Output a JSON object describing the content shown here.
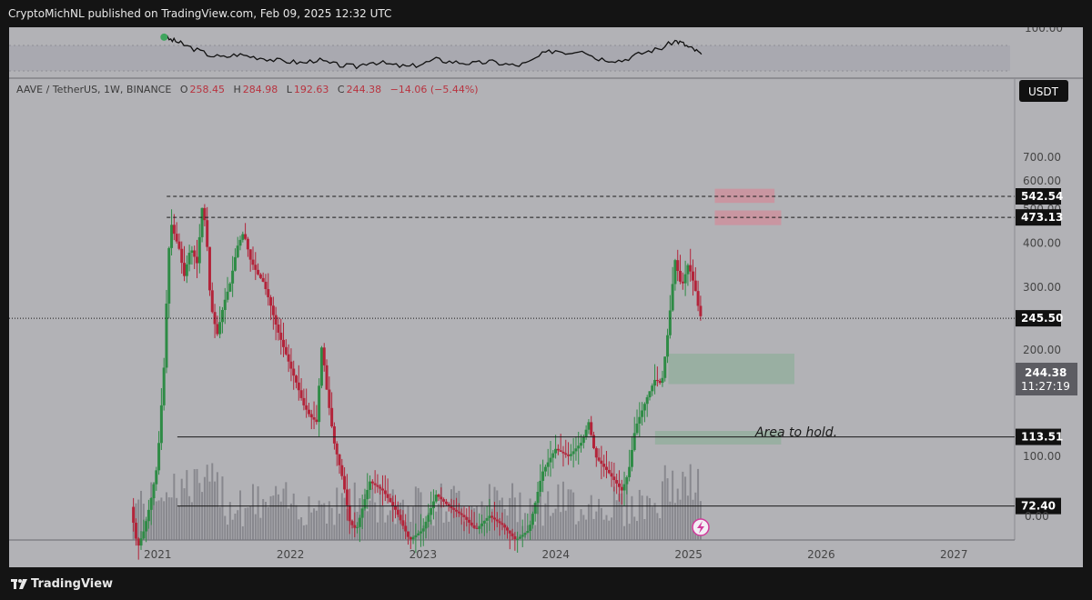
{
  "header": {
    "publish_text": "CryptoMichNL published on TradingView.com, Feb 09, 2025 12:32 UTC"
  },
  "legend": {
    "symbol": "AAVE / TetherUS, 1W, BINANCE",
    "open_label": "O",
    "open": "258.45",
    "high_label": "H",
    "high": "284.98",
    "low_label": "L",
    "low": "192.63",
    "close_label": "C",
    "close": "244.38",
    "change": "−14.06 (−5.44%)"
  },
  "currency_badge": "USDT",
  "rsi_panel": {
    "top_label": "100.00"
  },
  "footer": {
    "brand": "TradingView"
  },
  "colors": {
    "up": "#2e8b45",
    "down": "#b3243a",
    "background": "#b2b2b6",
    "resistance_zone": "#d08c9a",
    "support_zone": "#8fae9a",
    "badge": "#111111"
  },
  "chart_data": {
    "type": "candlestick",
    "scale": "log",
    "price_axis_labels": [
      "700.00",
      "600.00",
      "500.00",
      "400.00",
      "300.00",
      "200.00",
      "100.00"
    ],
    "volume_axis_label": "0.00",
    "x_tick_labels": [
      "2021",
      "2022",
      "2023",
      "2024",
      "2025",
      "2026",
      "2027"
    ],
    "levels": [
      {
        "label": "542.54",
        "value": 542.54,
        "style": "dashed"
      },
      {
        "label": "473.13",
        "value": 473.13,
        "style": "dashed"
      },
      {
        "label": "245.50",
        "value": 245.5,
        "style": "dotted"
      },
      {
        "label": "113.51",
        "value": 113.51,
        "style": "solid"
      },
      {
        "label": "72.40",
        "value": 72.4,
        "style": "solid"
      }
    ],
    "current_price": {
      "label": "244.38",
      "countdown": "11:27:19"
    },
    "zones": [
      {
        "kind": "resistance",
        "from": 2025.2,
        "to": 2025.65,
        "low": 520,
        "high": 570
      },
      {
        "kind": "resistance",
        "from": 2025.2,
        "to": 2025.7,
        "low": 450,
        "high": 495
      },
      {
        "kind": "support",
        "from": 2024.85,
        "to": 2025.8,
        "low": 160,
        "high": 195
      },
      {
        "kind": "support",
        "from": 2024.75,
        "to": 2025.7,
        "low": 108,
        "high": 118
      }
    ],
    "annotation": "Area to hold.",
    "price_path": [
      [
        2020.8,
        72
      ],
      [
        2020.85,
        55
      ],
      [
        2020.9,
        62
      ],
      [
        2020.95,
        75
      ],
      [
        2021.0,
        95
      ],
      [
        2021.05,
        180
      ],
      [
        2021.08,
        350
      ],
      [
        2021.1,
        460
      ],
      [
        2021.13,
        420
      ],
      [
        2021.17,
        380
      ],
      [
        2021.2,
        320
      ],
      [
        2021.25,
        390
      ],
      [
        2021.3,
        350
      ],
      [
        2021.34,
        520
      ],
      [
        2021.37,
        420
      ],
      [
        2021.4,
        270
      ],
      [
        2021.45,
        220
      ],
      [
        2021.5,
        270
      ],
      [
        2021.55,
        310
      ],
      [
        2021.6,
        390
      ],
      [
        2021.65,
        430
      ],
      [
        2021.7,
        360
      ],
      [
        2021.75,
        330
      ],
      [
        2021.8,
        310
      ],
      [
        2021.85,
        270
      ],
      [
        2021.9,
        230
      ],
      [
        2022.0,
        180
      ],
      [
        2022.05,
        160
      ],
      [
        2022.1,
        140
      ],
      [
        2022.15,
        130
      ],
      [
        2022.2,
        125
      ],
      [
        2022.24,
        210
      ],
      [
        2022.27,
        160
      ],
      [
        2022.33,
        110
      ],
      [
        2022.4,
        85
      ],
      [
        2022.45,
        65
      ],
      [
        2022.5,
        62
      ],
      [
        2022.6,
        85
      ],
      [
        2022.7,
        80
      ],
      [
        2022.8,
        70
      ],
      [
        2022.9,
        58
      ],
      [
        2023.0,
        62
      ],
      [
        2023.1,
        78
      ],
      [
        2023.2,
        72
      ],
      [
        2023.3,
        68
      ],
      [
        2023.4,
        62
      ],
      [
        2023.5,
        68
      ],
      [
        2023.6,
        64
      ],
      [
        2023.7,
        58
      ],
      [
        2023.8,
        62
      ],
      [
        2023.9,
        90
      ],
      [
        2024.0,
        105
      ],
      [
        2024.1,
        100
      ],
      [
        2024.2,
        110
      ],
      [
        2024.25,
        125
      ],
      [
        2024.3,
        100
      ],
      [
        2024.4,
        90
      ],
      [
        2024.5,
        80
      ],
      [
        2024.55,
        90
      ],
      [
        2024.6,
        120
      ],
      [
        2024.7,
        150
      ],
      [
        2024.75,
        165
      ],
      [
        2024.8,
        160
      ],
      [
        2024.85,
        230
      ],
      [
        2024.9,
        360
      ],
      [
        2024.95,
        300
      ],
      [
        2025.0,
        350
      ],
      [
        2025.05,
        300
      ],
      [
        2025.08,
        258
      ],
      [
        2025.1,
        244
      ]
    ],
    "rsi_path": [
      [
        2021.05,
        95
      ],
      [
        2021.1,
        90
      ],
      [
        2021.15,
        86
      ],
      [
        2021.2,
        80
      ],
      [
        2021.3,
        70
      ],
      [
        2021.4,
        60
      ],
      [
        2021.5,
        56
      ],
      [
        2021.6,
        62
      ],
      [
        2021.7,
        58
      ],
      [
        2021.8,
        55
      ],
      [
        2021.9,
        50
      ],
      [
        2022.0,
        48
      ],
      [
        2022.1,
        45
      ],
      [
        2022.2,
        52
      ],
      [
        2022.3,
        44
      ],
      [
        2022.4,
        40
      ],
      [
        2022.5,
        38
      ],
      [
        2022.6,
        48
      ],
      [
        2022.7,
        45
      ],
      [
        2022.8,
        40
      ],
      [
        2022.9,
        38
      ],
      [
        2023.0,
        44
      ],
      [
        2023.1,
        52
      ],
      [
        2023.2,
        48
      ],
      [
        2023.3,
        46
      ],
      [
        2023.4,
        44
      ],
      [
        2023.5,
        48
      ],
      [
        2023.6,
        44
      ],
      [
        2023.7,
        40
      ],
      [
        2023.8,
        46
      ],
      [
        2023.9,
        62
      ],
      [
        2024.0,
        70
      ],
      [
        2024.1,
        65
      ],
      [
        2024.2,
        72
      ],
      [
        2024.3,
        55
      ],
      [
        2024.4,
        52
      ],
      [
        2024.5,
        50
      ],
      [
        2024.6,
        60
      ],
      [
        2024.7,
        68
      ],
      [
        2024.8,
        74
      ],
      [
        2024.9,
        88
      ],
      [
        2024.95,
        84
      ],
      [
        2025.0,
        76
      ],
      [
        2025.05,
        70
      ],
      [
        2025.1,
        62
      ]
    ]
  }
}
